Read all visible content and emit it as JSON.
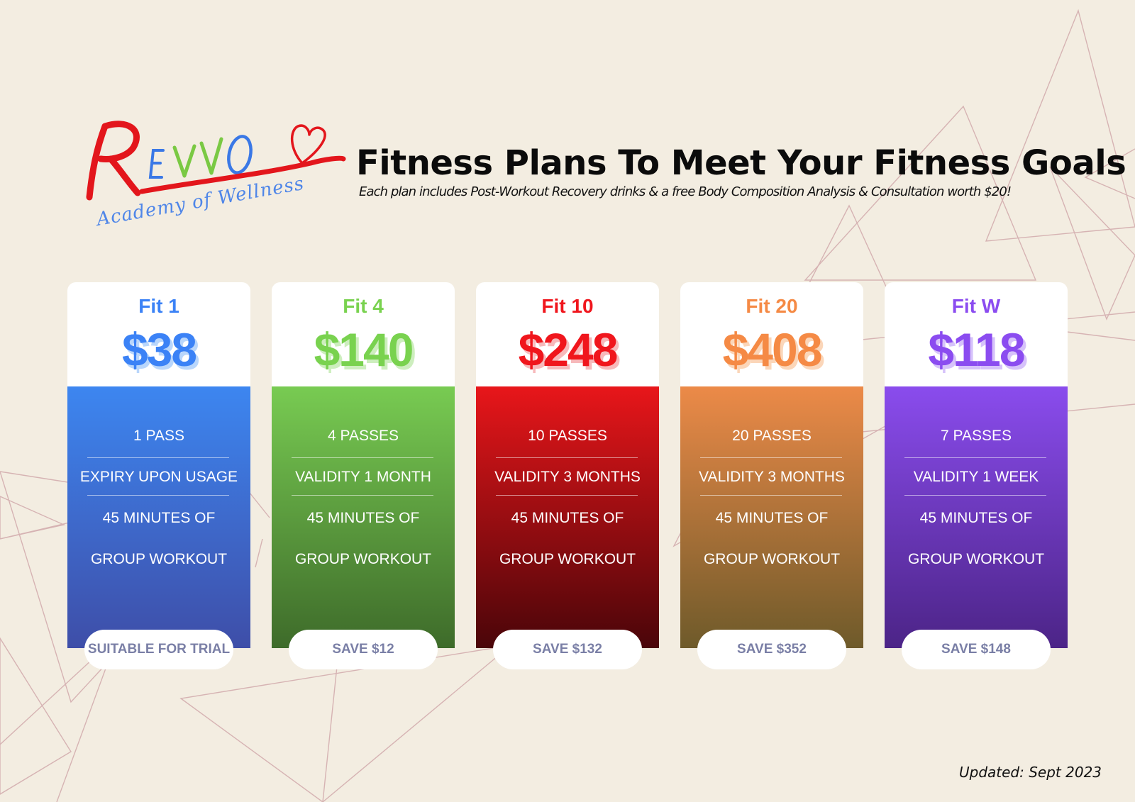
{
  "header": {
    "headline": "Fitness Plans To Meet Your Fitness Goals",
    "subline": "Each plan includes Post-Workout Recovery drinks & a free Body Composition Analysis & Consultation worth $20!"
  },
  "logo": {
    "wordmark": "REVVO",
    "tagline": "Academy of Wellness"
  },
  "plans": [
    {
      "name": "Fit 1",
      "price": "$38",
      "features": [
        "1 PASS",
        "EXPIRY UPON USAGE",
        "45 MINUTES OF",
        "GROUP WORKOUT"
      ],
      "badge": "SUITABLE FOR TRIAL",
      "color": "#3b82f6",
      "shadow": "#b9d6fb",
      "gradient_top": "#3d86f0",
      "gradient_bottom": "#3e4ea8"
    },
    {
      "name": "Fit 4",
      "price": "$140",
      "features": [
        "4 PASSES",
        "VALIDITY 1 MONTH",
        "45 MINUTES OF",
        "GROUP WORKOUT"
      ],
      "badge": "SAVE $12",
      "color": "#79d24f",
      "shadow": "#cdeebe",
      "gradient_top": "#78cb52",
      "gradient_bottom": "#3e6b2a"
    },
    {
      "name": "Fit 10",
      "price": "$248",
      "features": [
        "10 PASSES",
        "VALIDITY 3 MONTHS",
        "45 MINUTES OF",
        "GROUP WORKOUT"
      ],
      "badge": "SAVE $132",
      "color": "#f0161d",
      "shadow": "#f7b9bb",
      "gradient_top": "#e8161a",
      "gradient_bottom": "#4a0509"
    },
    {
      "name": "Fit 20",
      "price": "$408",
      "features": [
        "20 PASSES",
        "VALIDITY 3 MONTHS",
        "45 MINUTES OF",
        "GROUP WORKOUT"
      ],
      "badge": "SAVE $352",
      "color": "#f58a45",
      "shadow": "#fbd6b9",
      "gradient_top": "#ec8a48",
      "gradient_bottom": "#6e5a2a"
    },
    {
      "name": "Fit W",
      "price": "$118",
      "features": [
        "7 PASSES",
        "VALIDITY 1 WEEK",
        "45 MINUTES OF",
        "GROUP WORKOUT"
      ],
      "badge": "SAVE $148",
      "color": "#8b4cf0",
      "shadow": "#d6c2fa",
      "gradient_top": "#8a4ced",
      "gradient_bottom": "#4c2487"
    }
  ],
  "footer": {
    "updated": "Updated: Sept  2023"
  },
  "colors": {
    "background": "#f3ede1",
    "decor_lines": "#d9b8b8",
    "badge_text": "#7a7fa6"
  }
}
